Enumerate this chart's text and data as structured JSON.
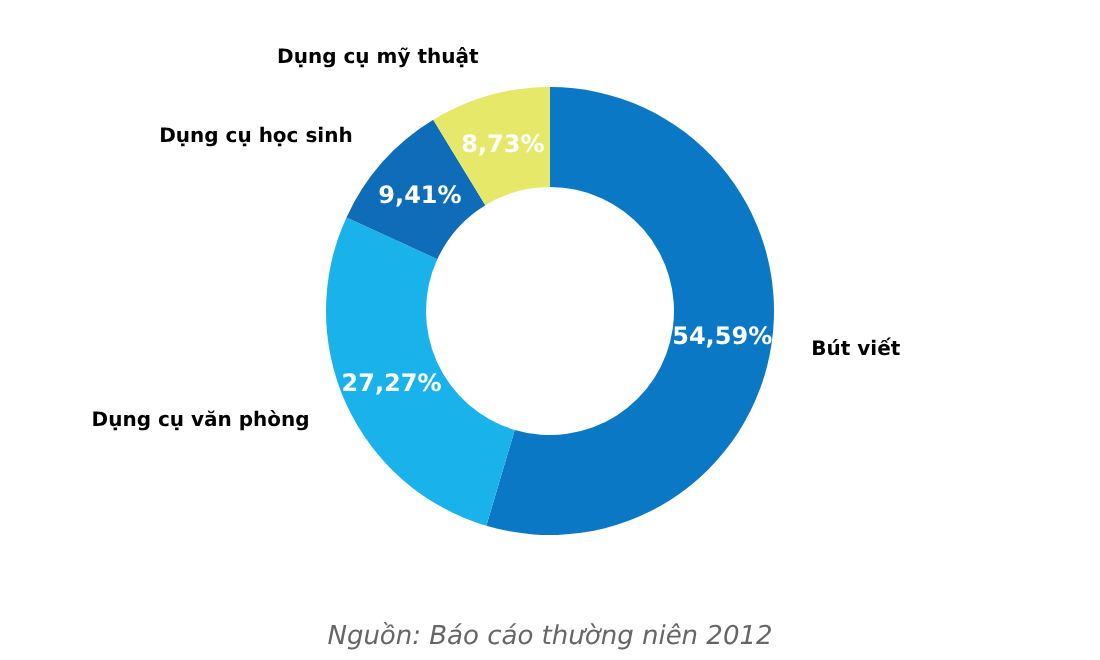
{
  "chart_data": {
    "type": "donut",
    "categories": [
      "Bút viết",
      "Dụng cụ văn phòng",
      "Dụng cụ học sinh",
      "Dụng cụ mỹ thuật"
    ],
    "values": [
      54.59,
      27.27,
      9.41,
      8.73
    ],
    "value_labels": [
      "54,59%",
      "27,27%",
      "9,41%",
      "8,73%"
    ],
    "colors": [
      "#0b78c6",
      "#19b2ea",
      "#0e6cb8",
      "#e6e86a"
    ],
    "annotations": [
      "Nguồn: Báo cáo thường niên 2012"
    ]
  }
}
